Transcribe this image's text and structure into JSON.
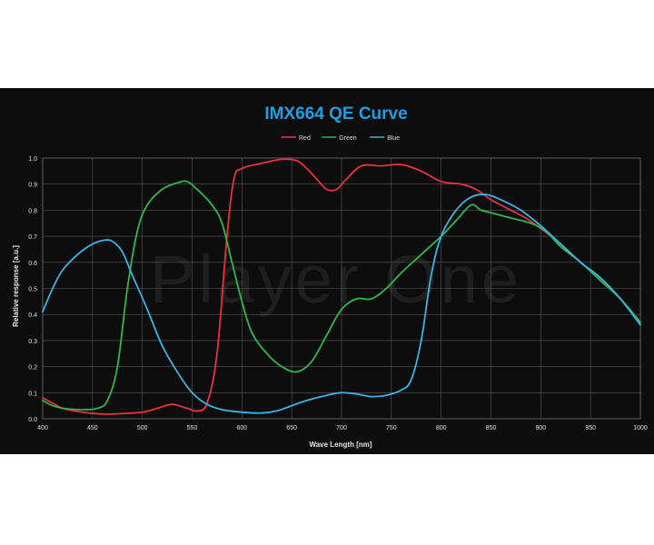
{
  "chart_data": {
    "type": "line",
    "title": "IMX664 QE Curve",
    "watermark": "Player One",
    "xlabel": "Wave Length [nm]",
    "ylabel": "Relative response [a.u.]",
    "xlim": [
      400,
      1000
    ],
    "ylim": [
      0,
      1.0
    ],
    "x_ticks": [
      "400",
      "450",
      "500",
      "550",
      "600",
      "650",
      "700",
      "750",
      "800",
      "850",
      "900",
      "950",
      "1000"
    ],
    "y_ticks": [
      "0.0",
      "0.1",
      "0.2",
      "0.3",
      "0.4",
      "0.5",
      "0.6",
      "0.7",
      "0.8",
      "0.9",
      "1.0"
    ],
    "grid": true,
    "legend_position": "top-center",
    "series": [
      {
        "name": "Red",
        "color": "#e8313d",
        "points": [
          [
            400,
            0.08
          ],
          [
            410,
            0.06
          ],
          [
            420,
            0.04
          ],
          [
            440,
            0.025
          ],
          [
            460,
            0.018
          ],
          [
            480,
            0.02
          ],
          [
            500,
            0.025
          ],
          [
            515,
            0.04
          ],
          [
            530,
            0.055
          ],
          [
            545,
            0.04
          ],
          [
            555,
            0.03
          ],
          [
            565,
            0.06
          ],
          [
            575,
            0.25
          ],
          [
            585,
            0.7
          ],
          [
            592,
            0.92
          ],
          [
            600,
            0.96
          ],
          [
            620,
            0.98
          ],
          [
            640,
            0.995
          ],
          [
            655,
            0.99
          ],
          [
            665,
            0.96
          ],
          [
            675,
            0.92
          ],
          [
            685,
            0.88
          ],
          [
            695,
            0.88
          ],
          [
            705,
            0.92
          ],
          [
            720,
            0.97
          ],
          [
            740,
            0.97
          ],
          [
            760,
            0.975
          ],
          [
            780,
            0.95
          ],
          [
            800,
            0.91
          ],
          [
            820,
            0.9
          ],
          [
            835,
            0.88
          ],
          [
            850,
            0.84
          ],
          [
            870,
            0.8
          ],
          [
            885,
            0.77
          ],
          [
            900,
            0.73
          ],
          [
            920,
            0.67
          ],
          [
            940,
            0.6
          ],
          [
            960,
            0.54
          ],
          [
            980,
            0.46
          ],
          [
            1000,
            0.37
          ]
        ]
      },
      {
        "name": "Green",
        "color": "#2db84a",
        "points": [
          [
            400,
            0.07
          ],
          [
            410,
            0.05
          ],
          [
            420,
            0.04
          ],
          [
            440,
            0.035
          ],
          [
            455,
            0.04
          ],
          [
            465,
            0.07
          ],
          [
            475,
            0.2
          ],
          [
            485,
            0.5
          ],
          [
            495,
            0.72
          ],
          [
            505,
            0.82
          ],
          [
            520,
            0.88
          ],
          [
            535,
            0.905
          ],
          [
            545,
            0.91
          ],
          [
            555,
            0.88
          ],
          [
            570,
            0.82
          ],
          [
            580,
            0.75
          ],
          [
            590,
            0.6
          ],
          [
            600,
            0.45
          ],
          [
            610,
            0.33
          ],
          [
            625,
            0.25
          ],
          [
            640,
            0.2
          ],
          [
            655,
            0.18
          ],
          [
            670,
            0.22
          ],
          [
            685,
            0.32
          ],
          [
            700,
            0.42
          ],
          [
            715,
            0.46
          ],
          [
            730,
            0.46
          ],
          [
            745,
            0.5
          ],
          [
            760,
            0.56
          ],
          [
            780,
            0.63
          ],
          [
            800,
            0.7
          ],
          [
            815,
            0.76
          ],
          [
            830,
            0.82
          ],
          [
            840,
            0.8
          ],
          [
            850,
            0.79
          ],
          [
            870,
            0.77
          ],
          [
            890,
            0.75
          ],
          [
            905,
            0.72
          ],
          [
            920,
            0.66
          ],
          [
            940,
            0.6
          ],
          [
            960,
            0.53
          ],
          [
            980,
            0.46
          ],
          [
            1000,
            0.37
          ]
        ]
      },
      {
        "name": "Blue",
        "color": "#3ab3e6",
        "points": [
          [
            400,
            0.41
          ],
          [
            410,
            0.5
          ],
          [
            420,
            0.57
          ],
          [
            435,
            0.63
          ],
          [
            450,
            0.67
          ],
          [
            462,
            0.685
          ],
          [
            470,
            0.68
          ],
          [
            480,
            0.64
          ],
          [
            490,
            0.55
          ],
          [
            505,
            0.42
          ],
          [
            520,
            0.28
          ],
          [
            535,
            0.18
          ],
          [
            550,
            0.1
          ],
          [
            565,
            0.055
          ],
          [
            580,
            0.035
          ],
          [
            600,
            0.025
          ],
          [
            620,
            0.022
          ],
          [
            635,
            0.03
          ],
          [
            650,
            0.05
          ],
          [
            665,
            0.07
          ],
          [
            685,
            0.09
          ],
          [
            700,
            0.1
          ],
          [
            715,
            0.095
          ],
          [
            730,
            0.085
          ],
          [
            745,
            0.09
          ],
          [
            760,
            0.11
          ],
          [
            770,
            0.15
          ],
          [
            780,
            0.3
          ],
          [
            790,
            0.55
          ],
          [
            800,
            0.7
          ],
          [
            815,
            0.8
          ],
          [
            830,
            0.85
          ],
          [
            845,
            0.86
          ],
          [
            860,
            0.84
          ],
          [
            880,
            0.8
          ],
          [
            900,
            0.74
          ],
          [
            920,
            0.67
          ],
          [
            940,
            0.6
          ],
          [
            960,
            0.54
          ],
          [
            980,
            0.46
          ],
          [
            1000,
            0.36
          ]
        ]
      }
    ]
  }
}
